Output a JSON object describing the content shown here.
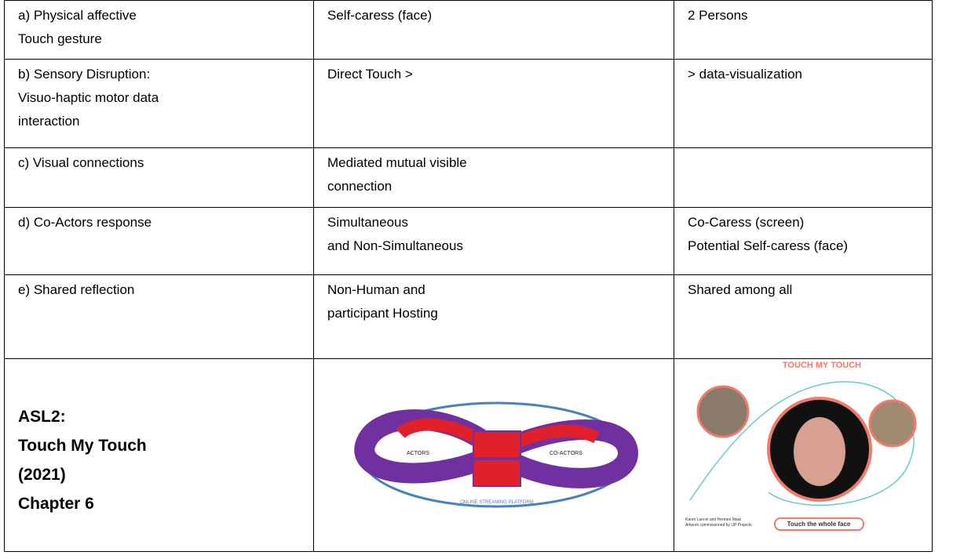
{
  "table": {
    "rows": [
      [
        [
          "a) Physical affective",
          "Touch gesture"
        ],
        [
          "Self-caress (face)"
        ],
        [
          "2 Persons"
        ]
      ],
      [
        [
          "b) Sensory Disruption:",
          "Visuo-haptic motor data",
          "interaction"
        ],
        [
          "Direct Touch >"
        ],
        [
          "> data-visualization"
        ]
      ],
      [
        [
          "c) Visual connections"
        ],
        [
          "Mediated mutual visible",
          "connection"
        ],
        []
      ],
      [
        [
          "d) Co-Actors response"
        ],
        [
          "Simultaneous",
          "and Non-Simultaneous"
        ],
        [
          "Co-Caress (screen)",
          "Potential Self-caress (face)"
        ]
      ],
      [
        [
          "e) Shared reflection"
        ],
        [
          "Non-Human and",
          "participant Hosting"
        ],
        [
          "Shared among all"
        ]
      ]
    ],
    "footer": {
      "title_lines": [
        "ASL2:",
        "Touch My Touch",
        "(2021)",
        "Chapter 6"
      ],
      "diagram": {
        "left_label": "ACTORS",
        "right_label": "CO-ACTORS",
        "platform": "ONLINE STREAMING PLATFORM"
      },
      "artwork": {
        "title": "TOUCH MY TOUCH",
        "button": "Touch the whole face",
        "credit_lines": [
          "Karen Lancel and Hermen Maat",
          "Artwork commissioned by UP Projects"
        ]
      }
    }
  }
}
